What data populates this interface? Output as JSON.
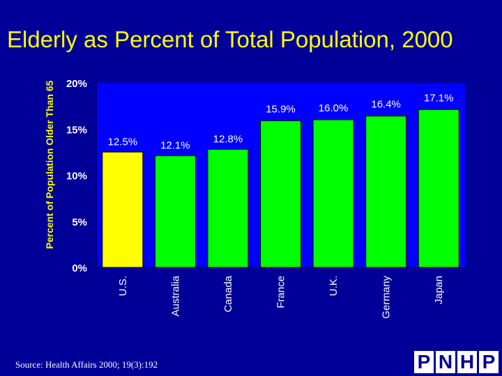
{
  "chart_data": {
    "type": "bar",
    "title": "Elderly as Percent of Total Population, 2000",
    "ylabel": "Percent of Population Older Than 65",
    "xlabel": "",
    "ylim": [
      0,
      20
    ],
    "yticks": [
      0,
      5,
      10,
      15,
      20
    ],
    "ytick_labels": [
      "0%",
      "5%",
      "10%",
      "15%",
      "20%"
    ],
    "categories": [
      "U.S.",
      "Australia",
      "Canada",
      "France",
      "U.K.",
      "Germany",
      "Japan"
    ],
    "values": [
      12.5,
      12.1,
      12.8,
      15.9,
      16.0,
      16.4,
      17.1
    ],
    "value_labels": [
      "12.5%",
      "12.1%",
      "12.8%",
      "15.9%",
      "16.0%",
      "16.4%",
      "17.1%"
    ],
    "bar_colors": [
      "#ffff00",
      "#00ff00",
      "#00ff00",
      "#00ff00",
      "#00ff00",
      "#00ff00",
      "#00ff00"
    ],
    "plot_background": "#0000ff",
    "grid": false,
    "legend": "none"
  },
  "source": "Source: Health Affairs 2000; 19(3):192",
  "logo_letters": [
    "P",
    "N",
    "H",
    "P"
  ],
  "colors": {
    "background": "#000099",
    "title": "#ffff00",
    "text": "#ffffff"
  }
}
